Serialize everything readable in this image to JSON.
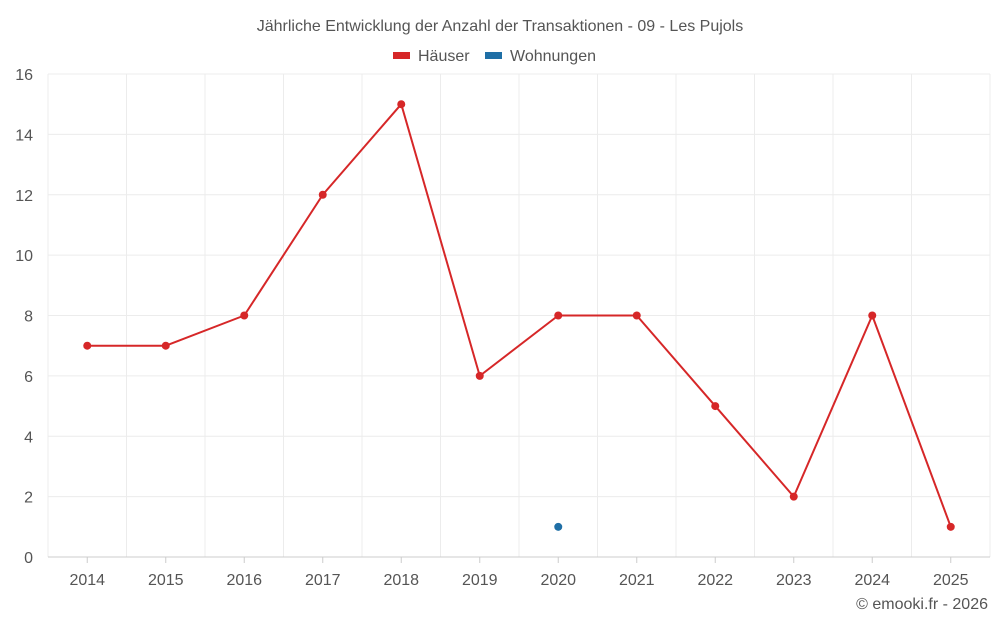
{
  "chart_data": {
    "type": "line",
    "title": "Jährliche Entwicklung der Anzahl der Transaktionen - 09 - Les Pujols",
    "categories": [
      "2014",
      "2015",
      "2016",
      "2017",
      "2018",
      "2019",
      "2020",
      "2021",
      "2022",
      "2023",
      "2024",
      "2025"
    ],
    "series": [
      {
        "name": "Häuser",
        "color": "#d62728",
        "values": [
          7,
          7,
          8,
          12,
          15,
          6,
          8,
          8,
          5,
          2,
          8,
          1
        ]
      },
      {
        "name": "Wohnungen",
        "color": "#1f6fa6",
        "values": [
          null,
          null,
          null,
          null,
          null,
          null,
          1,
          null,
          null,
          null,
          null,
          null
        ]
      }
    ],
    "ylim": [
      0,
      16
    ],
    "yticks": [
      "0",
      "2",
      "4",
      "6",
      "8",
      "10",
      "12",
      "14",
      "16"
    ],
    "grid": true,
    "legend_position": "top-center",
    "xlabel": "",
    "ylabel": ""
  },
  "credit": "© emooki.fr - 2026"
}
